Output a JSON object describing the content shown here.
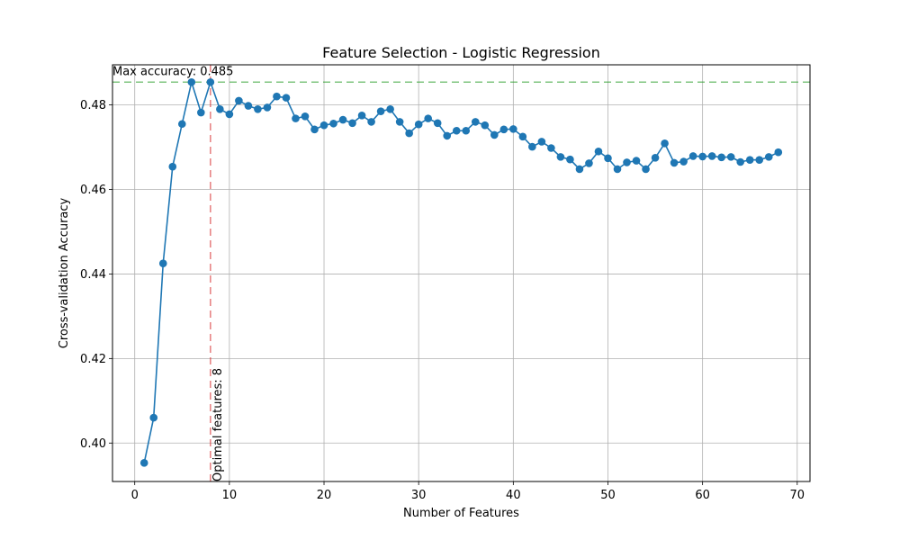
{
  "chart_data": {
    "type": "line",
    "title": "Feature Selection - Logistic Regression",
    "xlabel": "Number of Features",
    "ylabel": "Cross-validation Accuracy",
    "xlim": [
      -2.35,
      71.35
    ],
    "ylim": [
      0.3909,
      0.4895
    ],
    "xticks": [
      0,
      10,
      20,
      30,
      40,
      50,
      60,
      70
    ],
    "yticks": [
      0.4,
      0.42,
      0.44,
      0.46,
      0.48
    ],
    "xtick_labels": [
      "0",
      "10",
      "20",
      "30",
      "40",
      "50",
      "60",
      "70"
    ],
    "ytick_labels": [
      "0.40",
      "0.42",
      "0.44",
      "0.46",
      "0.48"
    ],
    "grid": true,
    "series_color": "#1f77b4",
    "x": [
      1,
      2,
      3,
      4,
      5,
      6,
      7,
      8,
      9,
      10,
      11,
      12,
      13,
      14,
      15,
      16,
      17,
      18,
      19,
      20,
      21,
      22,
      23,
      24,
      25,
      26,
      27,
      28,
      29,
      30,
      31,
      32,
      33,
      34,
      35,
      36,
      37,
      38,
      39,
      40,
      41,
      42,
      43,
      44,
      45,
      46,
      47,
      48,
      49,
      50,
      51,
      52,
      53,
      54,
      55,
      56,
      57,
      58,
      59,
      60,
      61,
      62,
      63,
      64,
      65,
      66,
      67,
      68
    ],
    "y": [
      0.3953,
      0.406,
      0.4425,
      0.4654,
      0.4755,
      0.4854,
      0.4782,
      0.4854,
      0.479,
      0.4778,
      0.481,
      0.4798,
      0.479,
      0.4794,
      0.482,
      0.4817,
      0.4768,
      0.4773,
      0.4742,
      0.4752,
      0.4756,
      0.4765,
      0.4757,
      0.4775,
      0.476,
      0.4785,
      0.479,
      0.476,
      0.4733,
      0.4754,
      0.4768,
      0.4757,
      0.4727,
      0.4739,
      0.4739,
      0.476,
      0.4752,
      0.4729,
      0.4742,
      0.4743,
      0.4725,
      0.4701,
      0.4713,
      0.4698,
      0.4677,
      0.4671,
      0.4648,
      0.4662,
      0.469,
      0.4674,
      0.4648,
      0.4664,
      0.4668,
      0.4648,
      0.4675,
      0.4709,
      0.4663,
      0.4666,
      0.4679,
      0.4678,
      0.4679,
      0.4676,
      0.4677,
      0.4665,
      0.467,
      0.467,
      0.4677,
      0.4688
    ],
    "hline": {
      "y": 0.4854,
      "color": "#2ca02c",
      "style": "dashed"
    },
    "vline": {
      "x": 8,
      "color": "#d62728",
      "style": "dashed"
    },
    "annotations": {
      "max_accuracy": "Max accuracy: 0.485",
      "optimal_features": "Optimal features: 8"
    }
  }
}
